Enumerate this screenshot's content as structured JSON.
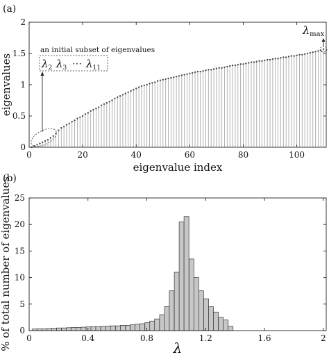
{
  "panels": [
    {
      "label": "(a)",
      "type": "stem",
      "xlabel": "eigenvalue index",
      "ylabel": "eigenvalues",
      "xlim": [
        0,
        111
      ],
      "ylim": [
        0,
        2
      ],
      "xticks": [
        0,
        20,
        40,
        60,
        80,
        100
      ],
      "yticks": [
        0,
        0.5,
        1,
        1.5,
        2
      ],
      "ytick_labels": [
        "0",
        "0.5",
        "1",
        "1.5",
        "2"
      ],
      "annotations": {
        "subset_text": "an initial subset of eigenvalues",
        "subset_ellipsis": "⋯",
        "lambda_symbol": "λ",
        "subset_items": [
          {
            "sub": "2"
          },
          {
            "sub": "3"
          },
          {
            "sub": "11"
          }
        ],
        "max_sub": "max"
      },
      "colors": {
        "stem": "#a9a9a9",
        "marker": "#4a4a4a"
      }
    },
    {
      "label": "(b)",
      "type": "bar",
      "xlabel": "λ",
      "ylabel": "% of total number of eigenvalues",
      "xlim": [
        0,
        2.02
      ],
      "ylim": [
        0,
        25
      ],
      "xticks": [
        0,
        0.4,
        0.8,
        1.2,
        1.6,
        2
      ],
      "xtick_labels": [
        "0",
        "0.4",
        "0.8",
        "1.2",
        "1.6",
        "2"
      ],
      "yticks": [
        0,
        5,
        10,
        15,
        20,
        25
      ],
      "bin_width": 0.0333,
      "bin_starts": [
        0.02,
        0.053,
        0.087,
        0.12,
        0.153,
        0.187,
        0.22,
        0.253,
        0.287,
        0.32,
        0.353,
        0.387,
        0.42,
        0.453,
        0.487,
        0.52,
        0.553,
        0.587,
        0.62,
        0.653,
        0.687,
        0.72,
        0.753,
        0.787,
        0.82,
        0.853,
        0.887,
        0.92,
        0.953,
        0.987,
        1.02,
        1.053,
        1.087,
        1.12,
        1.153,
        1.187,
        1.22,
        1.253,
        1.287,
        1.32,
        1.353
      ],
      "values": [
        0.3,
        0.35,
        0.35,
        0.4,
        0.45,
        0.5,
        0.5,
        0.55,
        0.6,
        0.6,
        0.65,
        0.7,
        0.75,
        0.75,
        0.8,
        0.85,
        0.9,
        0.9,
        1.0,
        1.0,
        1.1,
        1.2,
        1.3,
        1.5,
        1.8,
        2.2,
        3.0,
        4.5,
        7.5,
        11.0,
        20.5,
        21.5,
        13.5,
        10.0,
        7.5,
        6.0,
        4.5,
        3.5,
        2.5,
        2.0,
        0.8
      ],
      "colors": {
        "bar": "#c7c7c7",
        "edge": "#333333"
      }
    }
  ],
  "chart_data": [
    {
      "type": "stem",
      "xlabel": "eigenvalue index",
      "ylabel": "eigenvalues",
      "xlim": [
        0,
        111
      ],
      "ylim": [
        0,
        2
      ],
      "x": [
        1,
        2,
        3,
        4,
        5,
        6,
        7,
        8,
        9,
        10,
        11,
        12,
        13,
        14,
        15,
        16,
        17,
        18,
        19,
        20,
        21,
        22,
        23,
        24,
        25,
        26,
        27,
        28,
        29,
        30,
        31,
        32,
        33,
        34,
        35,
        36,
        37,
        38,
        39,
        40,
        41,
        42,
        43,
        44,
        45,
        46,
        47,
        48,
        49,
        50,
        51,
        52,
        53,
        54,
        55,
        56,
        57,
        58,
        59,
        60,
        61,
        62,
        63,
        64,
        65,
        66,
        67,
        68,
        69,
        70,
        71,
        72,
        73,
        74,
        75,
        76,
        77,
        78,
        79,
        80,
        81,
        82,
        83,
        84,
        85,
        86,
        87,
        88,
        89,
        90,
        91,
        92,
        93,
        94,
        95,
        96,
        97,
        98,
        99,
        100,
        101,
        102,
        103,
        104,
        105,
        106,
        107,
        108,
        109,
        110
      ],
      "y": [
        0.0,
        0.02,
        0.04,
        0.06,
        0.08,
        0.1,
        0.12,
        0.15,
        0.18,
        0.22,
        0.27,
        0.31,
        0.33,
        0.36,
        0.38,
        0.41,
        0.43,
        0.46,
        0.48,
        0.5,
        0.53,
        0.55,
        0.58,
        0.6,
        0.62,
        0.64,
        0.67,
        0.69,
        0.71,
        0.73,
        0.75,
        0.78,
        0.8,
        0.82,
        0.84,
        0.86,
        0.88,
        0.9,
        0.92,
        0.94,
        0.96,
        0.98,
        0.99,
        1.0,
        1.02,
        1.03,
        1.04,
        1.06,
        1.07,
        1.08,
        1.09,
        1.1,
        1.11,
        1.12,
        1.13,
        1.14,
        1.15,
        1.16,
        1.17,
        1.18,
        1.19,
        1.2,
        1.21,
        1.21,
        1.22,
        1.23,
        1.24,
        1.24,
        1.25,
        1.26,
        1.27,
        1.27,
        1.28,
        1.29,
        1.3,
        1.31,
        1.31,
        1.32,
        1.33,
        1.33,
        1.34,
        1.35,
        1.36,
        1.36,
        1.37,
        1.38,
        1.38,
        1.39,
        1.4,
        1.4,
        1.41,
        1.42,
        1.42,
        1.43,
        1.44,
        1.44,
        1.45,
        1.46,
        1.46,
        1.47,
        1.48,
        1.48,
        1.49,
        1.5,
        1.51,
        1.52,
        1.53,
        1.54,
        1.55,
        1.57
      ]
    },
    {
      "type": "bar",
      "xlabel": "λ",
      "ylabel": "% of total number of eigenvalues",
      "xlim": [
        0,
        2.02
      ],
      "ylim": [
        0,
        25
      ],
      "bin_width": 0.0333,
      "x": [
        0.02,
        0.053,
        0.087,
        0.12,
        0.153,
        0.187,
        0.22,
        0.253,
        0.287,
        0.32,
        0.353,
        0.387,
        0.42,
        0.453,
        0.487,
        0.52,
        0.553,
        0.587,
        0.62,
        0.653,
        0.687,
        0.72,
        0.753,
        0.787,
        0.82,
        0.853,
        0.887,
        0.92,
        0.953,
        0.987,
        1.02,
        1.053,
        1.087,
        1.12,
        1.153,
        1.187,
        1.22,
        1.253,
        1.287,
        1.32,
        1.353
      ],
      "values": [
        0.3,
        0.35,
        0.35,
        0.4,
        0.45,
        0.5,
        0.5,
        0.55,
        0.6,
        0.6,
        0.65,
        0.7,
        0.75,
        0.75,
        0.8,
        0.85,
        0.9,
        0.9,
        1.0,
        1.0,
        1.1,
        1.2,
        1.3,
        1.5,
        1.8,
        2.2,
        3.0,
        4.5,
        7.5,
        11.0,
        20.5,
        21.5,
        13.5,
        10.0,
        7.5,
        6.0,
        4.5,
        3.5,
        2.5,
        2.0,
        0.8
      ]
    }
  ]
}
